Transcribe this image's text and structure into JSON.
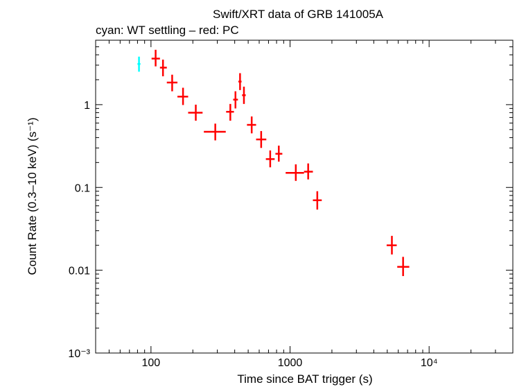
{
  "chart_data": {
    "type": "scatter",
    "title": "Swift/XRT data of GRB 141005A",
    "subtitle": "cyan: WT settling – red: PC",
    "xlabel": "Time since BAT trigger (s)",
    "ylabel": "Count Rate (0.3–10 keV) (s⁻¹)",
    "xscale": "log",
    "yscale": "log",
    "xlim": [
      40,
      40000
    ],
    "ylim": [
      0.001,
      6
    ],
    "x_tick_labels": [
      {
        "value": 100,
        "label": "100"
      },
      {
        "value": 1000,
        "label": "1000"
      },
      {
        "value": 10000,
        "label": "10⁴"
      }
    ],
    "y_tick_labels": [
      {
        "value": 1,
        "label": "1"
      },
      {
        "value": 0.1,
        "label": "0.1"
      },
      {
        "value": 0.01,
        "label": "0.01"
      },
      {
        "value": 0.001,
        "label": "10⁻³"
      }
    ],
    "series": [
      {
        "name": "WT settling",
        "color": "#00ffff",
        "points": [
          {
            "x": 82,
            "xlo": 80,
            "xhi": 84,
            "y": 3.1,
            "ylo": 2.5,
            "yhi": 3.8
          }
        ]
      },
      {
        "name": "PC",
        "color": "#ff0000",
        "points": [
          {
            "x": 108,
            "xlo": 101,
            "xhi": 116,
            "y": 3.6,
            "ylo": 2.9,
            "yhi": 4.6
          },
          {
            "x": 122,
            "xlo": 116,
            "xhi": 130,
            "y": 2.8,
            "ylo": 2.2,
            "yhi": 3.5
          },
          {
            "x": 142,
            "xlo": 130,
            "xhi": 155,
            "y": 1.85,
            "ylo": 1.45,
            "yhi": 2.3
          },
          {
            "x": 170,
            "xlo": 155,
            "xhi": 185,
            "y": 1.25,
            "ylo": 0.99,
            "yhi": 1.6
          },
          {
            "x": 210,
            "xlo": 185,
            "xhi": 235,
            "y": 0.8,
            "ylo": 0.64,
            "yhi": 1.0
          },
          {
            "x": 290,
            "xlo": 240,
            "xhi": 345,
            "y": 0.47,
            "ylo": 0.37,
            "yhi": 0.59
          },
          {
            "x": 372,
            "xlo": 347,
            "xhi": 395,
            "y": 0.82,
            "ylo": 0.64,
            "yhi": 1.02
          },
          {
            "x": 405,
            "xlo": 390,
            "xhi": 422,
            "y": 1.15,
            "ylo": 0.9,
            "yhi": 1.45
          },
          {
            "x": 437,
            "xlo": 425,
            "xhi": 448,
            "y": 1.9,
            "ylo": 1.5,
            "yhi": 2.4
          },
          {
            "x": 466,
            "xlo": 452,
            "xhi": 480,
            "y": 1.3,
            "ylo": 1.02,
            "yhi": 1.65
          },
          {
            "x": 530,
            "xlo": 490,
            "xhi": 570,
            "y": 0.57,
            "ylo": 0.45,
            "yhi": 0.72
          },
          {
            "x": 620,
            "xlo": 570,
            "xhi": 675,
            "y": 0.38,
            "ylo": 0.3,
            "yhi": 0.48
          },
          {
            "x": 720,
            "xlo": 670,
            "xhi": 775,
            "y": 0.22,
            "ylo": 0.175,
            "yhi": 0.28
          },
          {
            "x": 830,
            "xlo": 785,
            "xhi": 880,
            "y": 0.255,
            "ylo": 0.205,
            "yhi": 0.32
          },
          {
            "x": 1100,
            "xlo": 930,
            "xhi": 1260,
            "y": 0.15,
            "ylo": 0.12,
            "yhi": 0.19
          },
          {
            "x": 1350,
            "xlo": 1260,
            "xhi": 1460,
            "y": 0.155,
            "ylo": 0.125,
            "yhi": 0.195
          },
          {
            "x": 1570,
            "xlo": 1460,
            "xhi": 1690,
            "y": 0.07,
            "ylo": 0.054,
            "yhi": 0.09
          },
          {
            "x": 5400,
            "xlo": 4950,
            "xhi": 5850,
            "y": 0.02,
            "ylo": 0.0155,
            "yhi": 0.026
          },
          {
            "x": 6500,
            "xlo": 5900,
            "xhi": 7200,
            "y": 0.011,
            "ylo": 0.0085,
            "yhi": 0.0145
          }
        ]
      }
    ]
  }
}
